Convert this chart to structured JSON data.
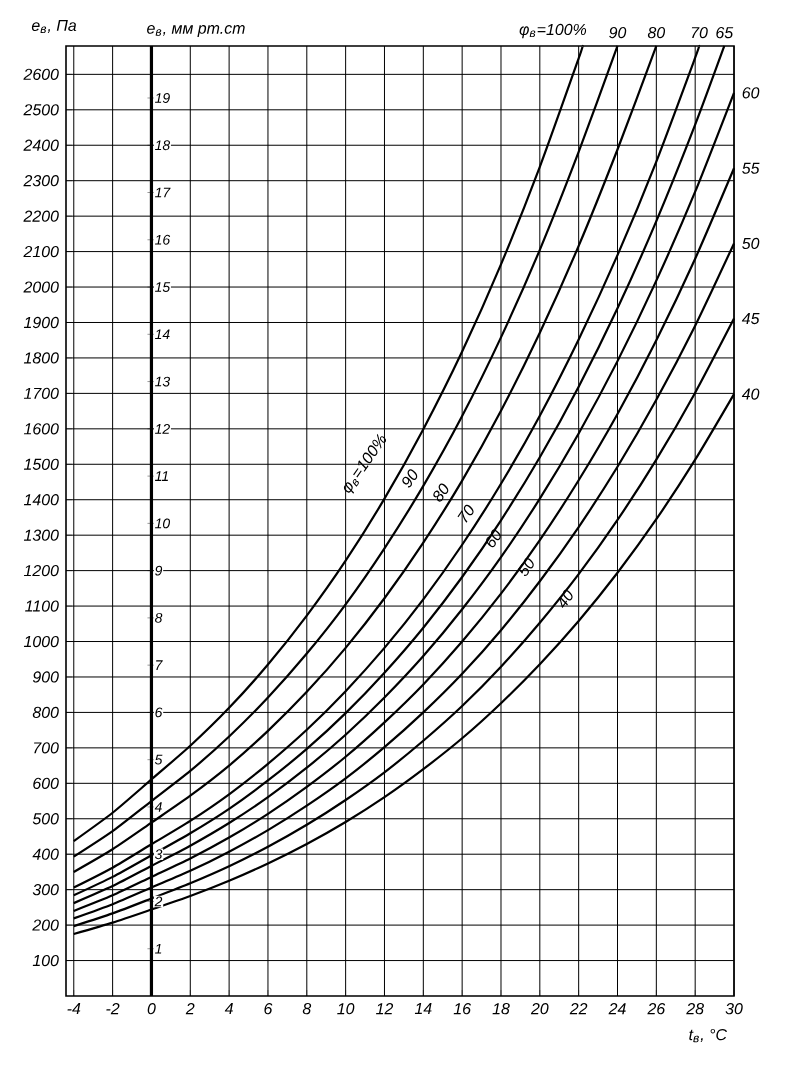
{
  "chart_data": {
    "type": "line",
    "xlabel": "t$_{в}$, °C",
    "ylabel": "e$_{в}$, Па",
    "y2label": "e$_{в}$, мм рт.ст",
    "xlim": [
      -4.4,
      30
    ],
    "ylim": [
      0,
      2680
    ],
    "y2lim": [
      0,
      20.1
    ],
    "xticks": [
      -4,
      -2,
      0,
      2,
      4,
      6,
      8,
      10,
      12,
      14,
      16,
      18,
      20,
      22,
      24,
      26,
      28,
      30
    ],
    "yticks": [
      100,
      200,
      300,
      400,
      500,
      600,
      700,
      800,
      900,
      1000,
      1100,
      1200,
      1300,
      1400,
      1500,
      1600,
      1700,
      1800,
      1900,
      2000,
      2100,
      2200,
      2300,
      2400,
      2500,
      2600
    ],
    "y2ticks": [
      1,
      2,
      3,
      4,
      5,
      6,
      7,
      8,
      9,
      10,
      11,
      12,
      13,
      14,
      15,
      16,
      17,
      18,
      19
    ],
    "grid": true,
    "marker": "none",
    "line_style": "solid",
    "series": [
      {
        "name": "φ$_{в}$=100%",
        "color": "#000000",
        "x": [
          -4,
          -2,
          0,
          2,
          4,
          6,
          8,
          10,
          12,
          14,
          16,
          18,
          20,
          22,
          22.2
        ],
        "values": [
          437,
          517,
          611,
          706,
          813,
          935,
          1073,
          1228,
          1403,
          1599,
          1818,
          2064,
          2339,
          2645,
          2680
        ]
      },
      {
        "name": "90",
        "color": "#000000",
        "x": [
          -4,
          -2,
          0,
          2,
          4,
          6,
          8,
          10,
          12,
          14,
          16,
          18,
          20,
          22,
          24
        ],
        "values": [
          393,
          465,
          550,
          635,
          732,
          842,
          966,
          1105,
          1263,
          1439,
          1636,
          1858,
          2105,
          2381,
          2680
        ]
      },
      {
        "name": "80",
        "color": "#000000",
        "x": [
          -4,
          -2,
          0,
          2,
          4,
          6,
          8,
          10,
          12,
          14,
          16,
          18,
          20,
          22,
          24,
          26
        ],
        "values": [
          350,
          414,
          489,
          565,
          650,
          748,
          858,
          982,
          1122,
          1279,
          1454,
          1651,
          1871,
          2116,
          2388,
          2680
        ]
      },
      {
        "name": "70",
        "color": "#000000",
        "x": [
          -4,
          -2,
          0,
          2,
          4,
          6,
          8,
          10,
          12,
          14,
          16,
          18,
          20,
          22,
          24,
          26,
          28,
          28.2
        ],
        "values": [
          306,
          362,
          428,
          494,
          569,
          655,
          751,
          860,
          982,
          1119,
          1273,
          1445,
          1637,
          1852,
          2090,
          2354,
          2647,
          2680
        ]
      },
      {
        "name": "65",
        "color": "#000000",
        "x": [
          -4,
          -2,
          0,
          2,
          4,
          6,
          8,
          10,
          12,
          14,
          16,
          18,
          20,
          22,
          24,
          26,
          28,
          29.5
        ],
        "values": [
          284,
          336,
          397,
          459,
          528,
          608,
          697,
          798,
          912,
          1039,
          1182,
          1342,
          1520,
          1719,
          1940,
          2186,
          2458,
          2680
        ]
      },
      {
        "name": "60",
        "color": "#000000",
        "x": [
          -4,
          -2,
          0,
          2,
          4,
          6,
          8,
          10,
          12,
          14,
          16,
          18,
          20,
          22,
          24,
          26,
          28,
          30
        ],
        "values": [
          262,
          310,
          367,
          424,
          488,
          561,
          644,
          737,
          842,
          959,
          1091,
          1238,
          1403,
          1587,
          1791,
          2018,
          2269,
          2548
        ]
      },
      {
        "name": "55",
        "color": "#000000",
        "x": [
          -4,
          -2,
          0,
          2,
          4,
          6,
          8,
          10,
          12,
          14,
          16,
          18,
          20,
          22,
          24,
          26,
          28,
          30
        ],
        "values": [
          240,
          284,
          336,
          388,
          447,
          514,
          590,
          675,
          772,
          879,
          1000,
          1135,
          1286,
          1455,
          1642,
          1850,
          2080,
          2335
        ]
      },
      {
        "name": "50",
        "color": "#000000",
        "x": [
          -4,
          -2,
          0,
          2,
          4,
          6,
          8,
          10,
          12,
          14,
          16,
          18,
          20,
          22,
          24,
          26,
          28,
          30
        ],
        "values": [
          219,
          259,
          306,
          353,
          407,
          468,
          537,
          614,
          702,
          800,
          909,
          1032,
          1170,
          1323,
          1493,
          1682,
          1891,
          2123
        ]
      },
      {
        "name": "45",
        "color": "#000000",
        "x": [
          -4,
          -2,
          0,
          2,
          4,
          6,
          8,
          10,
          12,
          14,
          16,
          18,
          20,
          22,
          24,
          26,
          28,
          30
        ],
        "values": [
          197,
          233,
          275,
          318,
          366,
          421,
          483,
          553,
          631,
          720,
          818,
          929,
          1053,
          1190,
          1343,
          1513,
          1702,
          1911
        ]
      },
      {
        "name": "40",
        "color": "#000000",
        "x": [
          -4,
          -2,
          0,
          2,
          4,
          6,
          8,
          10,
          12,
          14,
          16,
          18,
          20,
          22,
          24,
          26,
          28,
          30
        ],
        "values": [
          175,
          207,
          244,
          282,
          325,
          374,
          429,
          491,
          561,
          640,
          727,
          826,
          936,
          1058,
          1194,
          1345,
          1513,
          1698
        ]
      }
    ],
    "annotations": [
      "φ$_{в}$=100%",
      "90",
      "80",
      "70",
      "60",
      "50",
      "40"
    ]
  }
}
